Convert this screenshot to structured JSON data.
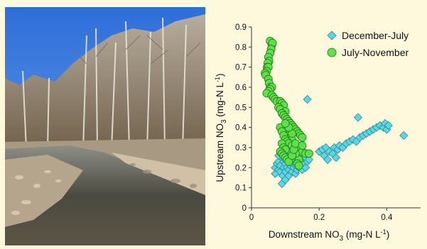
{
  "photo": {
    "subject": "stream-photograph"
  },
  "colors": {
    "series1_fill": "#5ed6e2",
    "series1_stroke": "#2b8a96",
    "series2_fill": "#5ee04a",
    "series2_stroke": "#1f7a12",
    "background": "#fef8dd"
  },
  "chart_data": {
    "type": "scatter",
    "xlabel_main": "Downstream NO",
    "xlabel_sub": "3",
    "xlabel_unit": " (mg-N L",
    "xlabel_sup": "-1",
    "xlabel_end": ")",
    "ylabel_main": "Upstream NO",
    "ylabel_sub": "3",
    "ylabel_unit": " (mg-N L",
    "ylabel_sup": "-1",
    "ylabel_end": ")",
    "xlim": [
      0,
      0.5
    ],
    "ylim": [
      0,
      0.9
    ],
    "xticks": [
      "0",
      "0.2",
      "0.4"
    ],
    "xtick_values": [
      0,
      0.2,
      0.4
    ],
    "yticks": [
      "0",
      "0.1",
      "0.2",
      "0.3",
      "0.4",
      "0.5",
      "0.6",
      "0.7",
      "0.8",
      "0.9"
    ],
    "ytick_values": [
      0,
      0.1,
      0.2,
      0.3,
      0.4,
      0.5,
      0.6,
      0.7,
      0.8,
      0.9
    ],
    "legend_position": "top-right",
    "series": [
      {
        "name": "December-July",
        "marker": "diamond",
        "points": [
          [
            0.07,
            0.17
          ],
          [
            0.07,
            0.2
          ],
          [
            0.075,
            0.22
          ],
          [
            0.08,
            0.19
          ],
          [
            0.08,
            0.23
          ],
          [
            0.085,
            0.18
          ],
          [
            0.085,
            0.21
          ],
          [
            0.09,
            0.12
          ],
          [
            0.09,
            0.25
          ],
          [
            0.092,
            0.16
          ],
          [
            0.095,
            0.2
          ],
          [
            0.095,
            0.23
          ],
          [
            0.1,
            0.14
          ],
          [
            0.1,
            0.18
          ],
          [
            0.1,
            0.22
          ],
          [
            0.1,
            0.26
          ],
          [
            0.105,
            0.2
          ],
          [
            0.105,
            0.24
          ],
          [
            0.11,
            0.16
          ],
          [
            0.11,
            0.19
          ],
          [
            0.11,
            0.23
          ],
          [
            0.115,
            0.21
          ],
          [
            0.115,
            0.25
          ],
          [
            0.12,
            0.18
          ],
          [
            0.12,
            0.22
          ],
          [
            0.12,
            0.27
          ],
          [
            0.125,
            0.2
          ],
          [
            0.125,
            0.24
          ],
          [
            0.13,
            0.17
          ],
          [
            0.13,
            0.21
          ],
          [
            0.13,
            0.25
          ],
          [
            0.135,
            0.19
          ],
          [
            0.135,
            0.23
          ],
          [
            0.14,
            0.2
          ],
          [
            0.14,
            0.22
          ],
          [
            0.14,
            0.26
          ],
          [
            0.145,
            0.21
          ],
          [
            0.15,
            0.19
          ],
          [
            0.15,
            0.24
          ],
          [
            0.155,
            0.22
          ],
          [
            0.16,
            0.2
          ],
          [
            0.16,
            0.25
          ],
          [
            0.165,
            0.23
          ],
          [
            0.17,
            0.24
          ],
          [
            0.08,
            0.26
          ],
          [
            0.09,
            0.29
          ],
          [
            0.1,
            0.3
          ],
          [
            0.11,
            0.28
          ],
          [
            0.095,
            0.27
          ],
          [
            0.165,
            0.54
          ],
          [
            0.2,
            0.28
          ],
          [
            0.21,
            0.29
          ],
          [
            0.215,
            0.26
          ],
          [
            0.22,
            0.3
          ],
          [
            0.225,
            0.24
          ],
          [
            0.23,
            0.28
          ],
          [
            0.24,
            0.27
          ],
          [
            0.245,
            0.3
          ],
          [
            0.25,
            0.25
          ],
          [
            0.255,
            0.29
          ],
          [
            0.26,
            0.31
          ],
          [
            0.27,
            0.3
          ],
          [
            0.28,
            0.32
          ],
          [
            0.29,
            0.33
          ],
          [
            0.3,
            0.34
          ],
          [
            0.31,
            0.33
          ],
          [
            0.315,
            0.45
          ],
          [
            0.32,
            0.35
          ],
          [
            0.33,
            0.36
          ],
          [
            0.34,
            0.37
          ],
          [
            0.35,
            0.38
          ],
          [
            0.36,
            0.39
          ],
          [
            0.37,
            0.4
          ],
          [
            0.38,
            0.41
          ],
          [
            0.39,
            0.4
          ],
          [
            0.395,
            0.42
          ],
          [
            0.4,
            0.39
          ],
          [
            0.405,
            0.41
          ],
          [
            0.45,
            0.36
          ]
        ]
      },
      {
        "name": "July-November",
        "marker": "circle",
        "points": [
          [
            0.055,
            0.83
          ],
          [
            0.06,
            0.81
          ],
          [
            0.062,
            0.82
          ],
          [
            0.058,
            0.79
          ],
          [
            0.055,
            0.77
          ],
          [
            0.05,
            0.75
          ],
          [
            0.052,
            0.73
          ],
          [
            0.048,
            0.72
          ],
          [
            0.046,
            0.7
          ],
          [
            0.05,
            0.7
          ],
          [
            0.045,
            0.68
          ],
          [
            0.04,
            0.67
          ],
          [
            0.042,
            0.66
          ],
          [
            0.05,
            0.64
          ],
          [
            0.052,
            0.62
          ],
          [
            0.055,
            0.6
          ],
          [
            0.06,
            0.6
          ],
          [
            0.055,
            0.59
          ],
          [
            0.05,
            0.58
          ],
          [
            0.045,
            0.57
          ],
          [
            0.06,
            0.56
          ],
          [
            0.065,
            0.55
          ],
          [
            0.07,
            0.54
          ],
          [
            0.075,
            0.53
          ],
          [
            0.085,
            0.53
          ],
          [
            0.09,
            0.52
          ],
          [
            0.095,
            0.51
          ],
          [
            0.08,
            0.5
          ],
          [
            0.085,
            0.49
          ],
          [
            0.1,
            0.48
          ],
          [
            0.09,
            0.47
          ],
          [
            0.095,
            0.46
          ],
          [
            0.1,
            0.45
          ],
          [
            0.105,
            0.44
          ],
          [
            0.11,
            0.43
          ],
          [
            0.115,
            0.42
          ],
          [
            0.12,
            0.41
          ],
          [
            0.125,
            0.4
          ],
          [
            0.13,
            0.39
          ],
          [
            0.135,
            0.38
          ],
          [
            0.14,
            0.37
          ],
          [
            0.145,
            0.36
          ],
          [
            0.1,
            0.39
          ],
          [
            0.105,
            0.37
          ],
          [
            0.11,
            0.36
          ],
          [
            0.115,
            0.35
          ],
          [
            0.12,
            0.34
          ],
          [
            0.15,
            0.35
          ],
          [
            0.085,
            0.4
          ],
          [
            0.09,
            0.38
          ],
          [
            0.095,
            0.36
          ],
          [
            0.1,
            0.34
          ],
          [
            0.105,
            0.33
          ],
          [
            0.11,
            0.32
          ],
          [
            0.12,
            0.31
          ],
          [
            0.13,
            0.3
          ],
          [
            0.14,
            0.29
          ],
          [
            0.15,
            0.28
          ],
          [
            0.16,
            0.27
          ],
          [
            0.17,
            0.27
          ],
          [
            0.09,
            0.32
          ],
          [
            0.095,
            0.3
          ],
          [
            0.1,
            0.29
          ],
          [
            0.085,
            0.28
          ],
          [
            0.09,
            0.27
          ],
          [
            0.095,
            0.26
          ],
          [
            0.1,
            0.25
          ],
          [
            0.105,
            0.24
          ],
          [
            0.11,
            0.23
          ],
          [
            0.14,
            0.24
          ],
          [
            0.135,
            0.22
          ],
          [
            0.14,
            0.21
          ],
          [
            0.13,
            0.27
          ],
          [
            0.12,
            0.26
          ],
          [
            0.125,
            0.29
          ],
          [
            0.13,
            0.32
          ],
          [
            0.12,
            0.37
          ],
          [
            0.11,
            0.4
          ],
          [
            0.1,
            0.42
          ],
          [
            0.15,
            0.31
          ]
        ]
      }
    ]
  }
}
